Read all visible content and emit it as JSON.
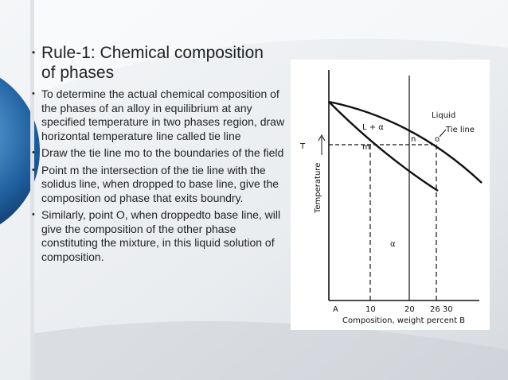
{
  "slide": {
    "title": "Rule-1: Chemical composition of phases",
    "bullets": [
      "To determine the actual chemical composition of the phases of an alloy in equilibrium at any specified temperature in two phases region, draw horizontal temperature line called tie line",
      "Draw the tie line mo to the boundaries of the field",
      "Point m the intersection of the tie line with the solidus line, when dropped to base line, give the composition od phase that exits boundry.",
      "Similarly, point O, when droppedto base line, will give the composition of the other phase constituting the mixture, in this liquid solution of composition."
    ]
  },
  "diagram": {
    "y_axis_label": "Temperature",
    "x_axis_label": "Composition, weight percent B",
    "x_tick_labels": [
      "A",
      "10",
      "20",
      "26 30"
    ],
    "labels": {
      "liquid": "Liquid",
      "tie_line": "Tie line",
      "two_phase": "L + α",
      "temperature": "T",
      "m": "m",
      "n": "n",
      "o": "o",
      "alpha": "α"
    }
  }
}
